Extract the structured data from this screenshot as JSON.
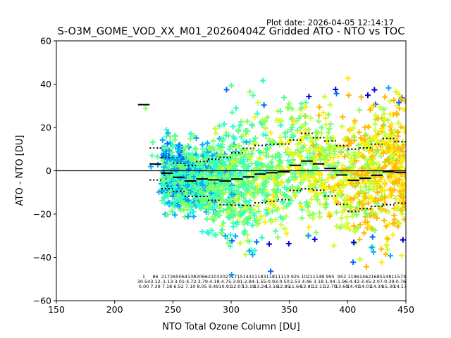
{
  "chart_data": {
    "type": "scatter",
    "plot_date": "Plot date: 2026-04-05 12:14:17",
    "title": "S-O3M_GOME_VOD_XX_M01_20260404Z Gridded ATO - NTO vs TOC",
    "xlabel": "NTO Total Ozone Column [DU]",
    "ylabel": "ATO - NTO [DU]",
    "xlim": [
      150,
      450
    ],
    "ylim": [
      -60,
      60
    ],
    "xticks": [
      "150",
      "200",
      "250",
      "300",
      "350",
      "400",
      "450"
    ],
    "yticks": [
      "60",
      "40",
      "20",
      "0",
      "−20",
      "−40",
      "−60"
    ],
    "grid": false,
    "zero_line": 0,
    "colormap": [
      "#0000dd",
      "#0066ff",
      "#00aaff",
      "#22ffd0",
      "#50ff9a",
      "#80ff60",
      "#c8ff30",
      "#ffee00",
      "#ffb800"
    ],
    "bins": {
      "centers": [
        225,
        235,
        245,
        255,
        265,
        275,
        285,
        295,
        305,
        315,
        325,
        335,
        345,
        355,
        365,
        375,
        385,
        395,
        405,
        415,
        425,
        435,
        445
      ],
      "counts": [
        "1",
        "86",
        "2172",
        "6506",
        "4138",
        "2066",
        "2103",
        "2027",
        "1715",
        "1431",
        "1183",
        "1181",
        "1110",
        "925",
        "1021",
        "1148",
        "995",
        "952",
        "1196",
        "1462",
        "1685",
        "1481",
        "1573"
      ],
      "means": [
        "30.54",
        "3.12",
        "-1.13",
        "-3.01",
        "-4.72",
        "-3.79",
        "-4.18",
        "-4.75",
        "-3.81",
        "-2.84",
        "-1.55",
        "-0.93",
        "-0.50",
        "2.53",
        "4.46",
        "3.18",
        "1.04",
        "-1.96",
        "-4.42",
        "-3.45",
        "-2.07",
        "-0.39",
        "-0.76"
      ],
      "stds": [
        "0.00",
        "7.39",
        "7.18",
        "6.52",
        "7.10",
        "8.05",
        "9.49",
        "10.91",
        "12.07",
        "13.19",
        "13.24",
        "13.16",
        "12.85",
        "11.64",
        "12.81",
        "12.11",
        "12.70",
        "13.60",
        "14.41",
        "14.01",
        "14.34",
        "15.30",
        "14.17"
      ]
    }
  }
}
